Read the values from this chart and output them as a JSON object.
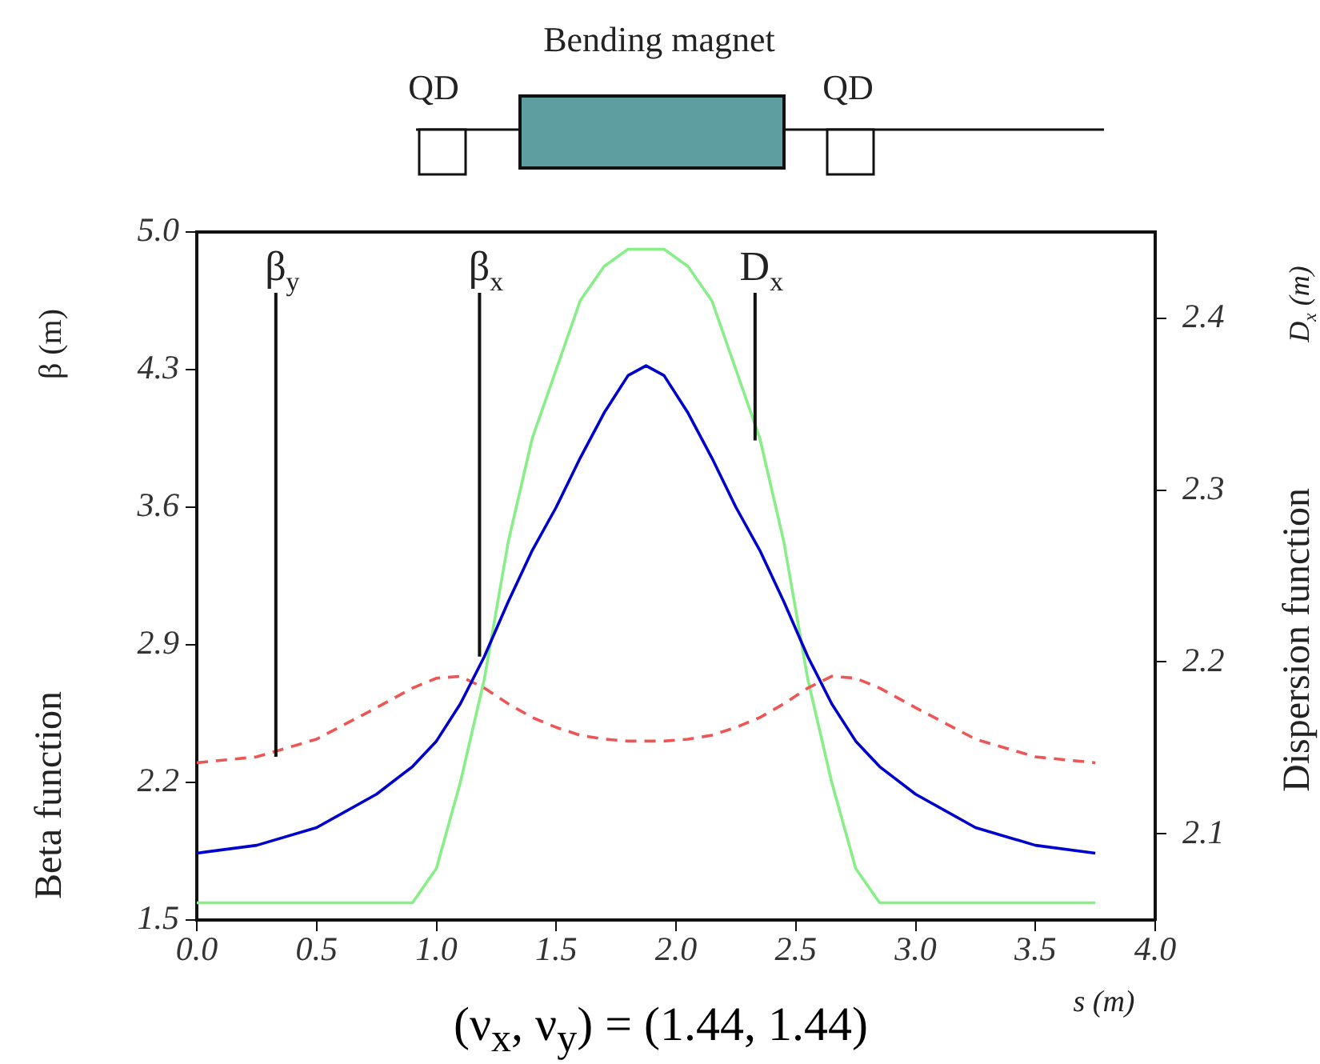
{
  "chart_data": {
    "type": "line",
    "xlabel": "s (m)",
    "ylabel": "Beta function",
    "y2label": "Dispersion function",
    "x": [
      0,
      0.25,
      0.5,
      0.75,
      0.9,
      1.0,
      1.1,
      1.2,
      1.3,
      1.4,
      1.5,
      1.6,
      1.7,
      1.8,
      1.875,
      1.95,
      2.05,
      2.15,
      2.25,
      2.35,
      2.45,
      2.55,
      2.65,
      2.75,
      2.85,
      3.0,
      3.25,
      3.5,
      3.75
    ],
    "series": [
      {
        "color": "#0000cc",
        "values": [
          1.84,
          1.88,
          1.97,
          2.14,
          2.28,
          2.41,
          2.6,
          2.84,
          3.12,
          3.38,
          3.6,
          3.85,
          4.08,
          4.27,
          4.32,
          4.27,
          4.08,
          3.85,
          3.6,
          3.38,
          3.12,
          2.84,
          2.6,
          2.41,
          2.28,
          2.14,
          1.97,
          1.88,
          1.84
        ]
      },
      {
        "color": "#ee5555",
        "line_style": "dashed",
        "values": [
          2.3,
          2.33,
          2.42,
          2.58,
          2.68,
          2.73,
          2.74,
          2.68,
          2.6,
          2.53,
          2.48,
          2.44,
          2.42,
          2.41,
          2.41,
          2.41,
          2.42,
          2.44,
          2.48,
          2.53,
          2.6,
          2.68,
          2.74,
          2.73,
          2.68,
          2.58,
          2.42,
          2.33,
          2.3
        ]
      },
      {
        "color": "#88ee88",
        "axis": "y2",
        "values": [
          2.06,
          2.06,
          2.06,
          2.06,
          2.06,
          2.08,
          2.13,
          2.19,
          2.27,
          2.33,
          2.37,
          2.41,
          2.43,
          2.44,
          2.44,
          2.44,
          2.43,
          2.41,
          2.37,
          2.33,
          2.27,
          2.19,
          2.13,
          2.08,
          2.06,
          2.06,
          2.06,
          2.06,
          2.06
        ]
      }
    ],
    "xlim": [
      0,
      4
    ],
    "xticks": [
      {
        "value": 0,
        "label": "0.0"
      },
      0.5,
      {
        "value": 1,
        "label": "1.0"
      },
      1.5,
      {
        "value": 2,
        "label": "2.0"
      },
      2.5,
      {
        "value": 3,
        "label": "3.0"
      },
      3.5,
      {
        "value": 4,
        "label": "4.0"
      }
    ],
    "ylim": [
      1.5,
      5
    ],
    "yticks": [
      1.5,
      2.2,
      2.9,
      3.6,
      4.3,
      {
        "value": 5,
        "label": "5.0"
      }
    ],
    "y2lim": [
      2.05,
      2.45
    ],
    "y2ticks": [
      2.1,
      2.2,
      2.3,
      2.4
    ],
    "grid": false,
    "legend": false,
    "marker": "none",
    "annotations": [
      "Bending magnet",
      "QD",
      "QD",
      "β (m)",
      "D$_{x}$ (m)",
      "(ν$_{x}$, ν$_{y}$) = (1.44, 1.44)",
      {
        "text": "β$_{y}$",
        "x": 0.33,
        "y": 2.33
      },
      {
        "text": "β$_{x}$",
        "x": 1.18,
        "y": 2.84
      },
      {
        "text": "D$_{x}$",
        "x": 2.33,
        "y": 3.94
      }
    ]
  }
}
